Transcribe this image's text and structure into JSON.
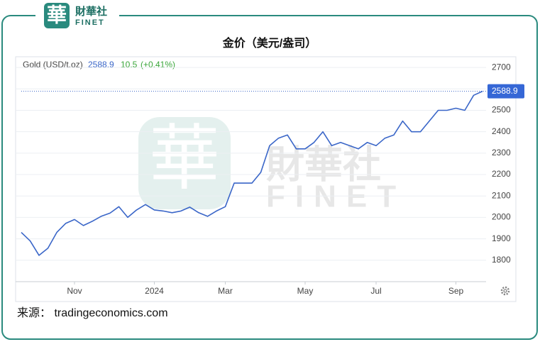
{
  "brand": {
    "mark": "華",
    "name": "財華社",
    "latin": "FINET"
  },
  "chart_data": {
    "type": "line",
    "title": "金价（美元/盎司）",
    "categories": [
      null,
      null,
      null,
      null,
      null,
      null,
      "Nov",
      null,
      null,
      null,
      null,
      null,
      null,
      null,
      null,
      "2024",
      null,
      null,
      null,
      null,
      null,
      null,
      null,
      "Mar",
      null,
      null,
      null,
      null,
      null,
      null,
      null,
      null,
      "May",
      null,
      null,
      null,
      null,
      null,
      null,
      null,
      "Jul",
      null,
      null,
      null,
      null,
      null,
      null,
      null,
      null,
      "Sep",
      null,
      null,
      null
    ],
    "series": [
      {
        "name": "Gold (USD/t.oz)",
        "color": "#3a66c8",
        "values": [
          1930,
          1890,
          1823,
          1856,
          1930,
          1972,
          1990,
          1962,
          1982,
          2005,
          2020,
          2050,
          2000,
          2035,
          2060,
          2035,
          2030,
          2022,
          2030,
          2048,
          2022,
          2005,
          2030,
          2050,
          2160,
          2160,
          2160,
          2210,
          2335,
          2370,
          2385,
          2320,
          2320,
          2350,
          2400,
          2335,
          2350,
          2335,
          2320,
          2350,
          2335,
          2370,
          2385,
          2450,
          2400,
          2400,
          2450,
          2500,
          2500,
          2510,
          2500,
          2570,
          2588.9
        ]
      }
    ],
    "change": 10.5,
    "change_percent": {
      "value": 0.41,
      "label": "(+0.41%)"
    },
    "ylim": [
      1700,
      2750
    ],
    "yticks": [
      1800,
      1900,
      2000,
      2100,
      2200,
      2300,
      2400,
      2500,
      2600,
      2700
    ],
    "grid": true,
    "source": "来源： tradingeconomics.com"
  }
}
